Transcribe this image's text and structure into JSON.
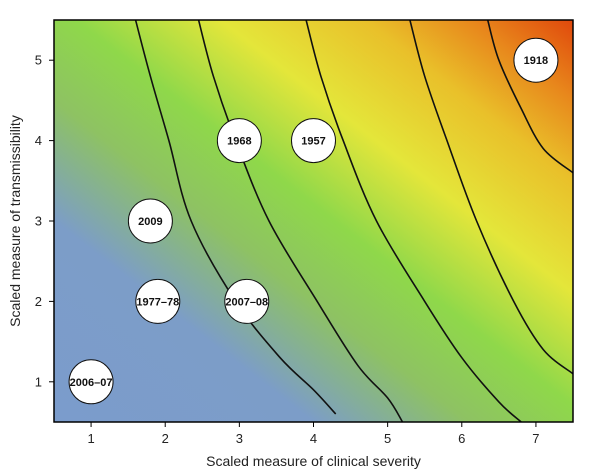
{
  "chart_data": {
    "type": "scatter",
    "title": "",
    "xlabel": "Scaled measure of clinical severity",
    "ylabel": "Scaled measure of transmissibility",
    "xlim": [
      0.5,
      7.5
    ],
    "ylim": [
      0.5,
      5.5
    ],
    "xticks": [
      1,
      2,
      3,
      4,
      5,
      6,
      7
    ],
    "yticks": [
      1,
      2,
      3,
      4,
      5
    ],
    "grid": false,
    "background": "filled contour gradient from blue (low severity/transmissibility) through green and yellow to orange-red (high)",
    "colors": {
      "blue": "#7b9ccc",
      "green": "#8fd84a",
      "yellow": "#e9e62c",
      "orange": "#e88a1c",
      "red": "#e0480c"
    },
    "points": [
      {
        "label": "1918",
        "x": 7.0,
        "y": 5.0
      },
      {
        "label": "1968",
        "x": 3.0,
        "y": 4.0
      },
      {
        "label": "1957",
        "x": 4.0,
        "y": 4.0
      },
      {
        "label": "2009",
        "x": 1.8,
        "y": 3.0
      },
      {
        "label": "1977–78",
        "x": 1.9,
        "y": 2.0
      },
      {
        "label": "2007–08",
        "x": 3.1,
        "y": 2.0
      },
      {
        "label": "2006–07",
        "x": 1.0,
        "y": 1.0
      }
    ],
    "contour_lines": [
      [
        [
          1.6,
          5.5
        ],
        [
          1.8,
          4.8
        ],
        [
          2.05,
          4.0
        ],
        [
          2.35,
          3.0
        ],
        [
          2.95,
          2.0
        ],
        [
          3.55,
          1.3
        ],
        [
          4.0,
          0.9
        ],
        [
          4.3,
          0.6
        ]
      ],
      [
        [
          2.45,
          5.5
        ],
        [
          2.65,
          4.8
        ],
        [
          2.95,
          4.0
        ],
        [
          3.4,
          3.0
        ],
        [
          4.05,
          2.0
        ],
        [
          4.6,
          1.2
        ],
        [
          5.0,
          0.8
        ],
        [
          5.2,
          0.5
        ]
      ],
      [
        [
          3.9,
          5.5
        ],
        [
          4.1,
          4.8
        ],
        [
          4.4,
          4.0
        ],
        [
          4.85,
          3.0
        ],
        [
          5.5,
          2.0
        ],
        [
          6.0,
          1.3
        ],
        [
          6.5,
          0.75
        ],
        [
          6.8,
          0.5
        ]
      ],
      [
        [
          5.3,
          5.5
        ],
        [
          5.5,
          4.8
        ],
        [
          5.8,
          4.0
        ],
        [
          6.2,
          3.0
        ],
        [
          6.7,
          2.0
        ],
        [
          7.1,
          1.4
        ],
        [
          7.5,
          1.1
        ]
      ],
      [
        [
          6.35,
          5.5
        ],
        [
          6.5,
          5.0
        ],
        [
          6.8,
          4.4
        ],
        [
          7.1,
          3.9
        ],
        [
          7.5,
          3.6
        ]
      ]
    ]
  }
}
